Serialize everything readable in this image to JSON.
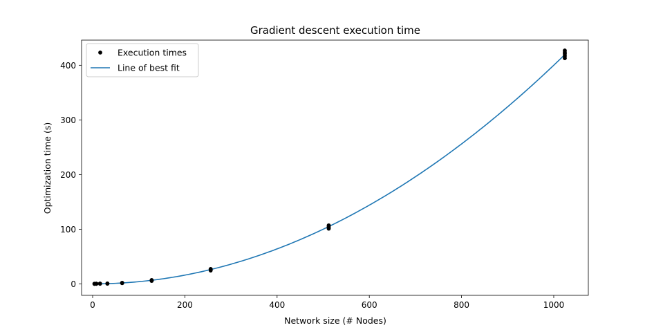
{
  "chart_data": {
    "type": "scatter",
    "title": "Gradient descent execution time",
    "xlabel": "Network size (# Nodes)",
    "ylabel": "Optimization time (s)",
    "xlim": [
      -24,
      1075
    ],
    "ylim": [
      -21,
      446
    ],
    "xticks": [
      0,
      200,
      400,
      600,
      800,
      1000
    ],
    "yticks": [
      0,
      100,
      200,
      300,
      400
    ],
    "grid": false,
    "legend_position": "top-left",
    "series": [
      {
        "name": "Execution times",
        "kind": "points",
        "color": "#000000",
        "points": [
          [
            4,
            0.0
          ],
          [
            4,
            0.1
          ],
          [
            4,
            0.2
          ],
          [
            8,
            0.1
          ],
          [
            8,
            0.2
          ],
          [
            8,
            0.3
          ],
          [
            16,
            0.3
          ],
          [
            16,
            0.4
          ],
          [
            16,
            0.5
          ],
          [
            32,
            0.4
          ],
          [
            32,
            0.5
          ],
          [
            32,
            0.6
          ],
          [
            64,
            1.3
          ],
          [
            64,
            1.6
          ],
          [
            64,
            1.9
          ],
          [
            128,
            5.5
          ],
          [
            128,
            6.2
          ],
          [
            128,
            6.9
          ],
          [
            256,
            24.5
          ],
          [
            256,
            26.0
          ],
          [
            256,
            27.2
          ],
          [
            512,
            101
          ],
          [
            512,
            103
          ],
          [
            512,
            105
          ],
          [
            512,
            107
          ],
          [
            1024,
            413
          ],
          [
            1024,
            417
          ],
          [
            1024,
            421
          ],
          [
            1024,
            424
          ],
          [
            1024,
            427
          ]
        ]
      },
      {
        "name": "Line of best fit",
        "kind": "curve",
        "color": "#1f77b4",
        "equation": "y = 0.0004 * x^2",
        "x_range": [
          4,
          1024
        ]
      }
    ]
  }
}
